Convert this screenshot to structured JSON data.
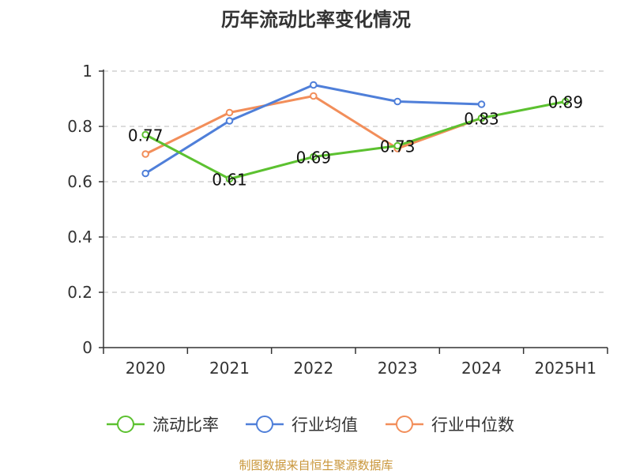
{
  "chart_data": {
    "type": "line",
    "title": "历年流动比率变化情况",
    "categories": [
      "2020",
      "2021",
      "2022",
      "2023",
      "2024",
      "2025H1"
    ],
    "ylim": [
      0,
      1
    ],
    "yticks": [
      "0",
      "0.2",
      "0.4",
      "0.6",
      "0.8",
      "1"
    ],
    "ytick_values": [
      0,
      0.2,
      0.4,
      0.6,
      0.8,
      1
    ],
    "grid": true,
    "legend_position": "bottom",
    "series": [
      {
        "name": "流动比率",
        "color": "#5cc130",
        "values": [
          0.77,
          0.61,
          0.69,
          0.73,
          0.83,
          0.89
        ],
        "labels": [
          "0.77",
          "0.61",
          "0.69",
          "0.73",
          "0.83",
          "0.89"
        ]
      },
      {
        "name": "行业均值",
        "color": "#4f7fd9",
        "values": [
          0.63,
          0.82,
          0.95,
          0.89,
          0.88,
          null
        ]
      },
      {
        "name": "行业中位数",
        "color": "#f28e5a",
        "values": [
          0.7,
          0.85,
          0.91,
          0.72,
          0.83,
          null
        ]
      }
    ]
  },
  "source_text": "制图数据来自恒生聚源数据库",
  "source_color": "#c9963a"
}
